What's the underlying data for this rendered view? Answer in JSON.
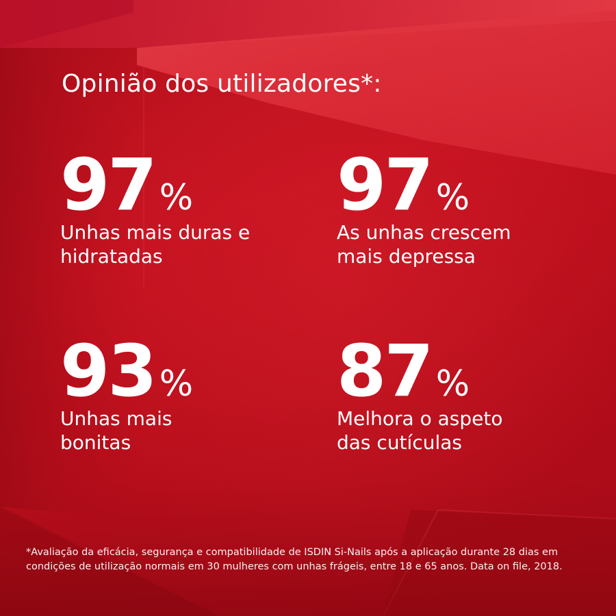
{
  "headline": "Opinião dos utilizadores*:",
  "stats": [
    {
      "number": "97",
      "unit": "%",
      "description": "Unhas mais duras e\nhidratadas"
    },
    {
      "number": "97",
      "unit": "%",
      "description": "As unhas crescem\nmais depressa"
    },
    {
      "number": "93",
      "unit": "%",
      "description": "Unhas mais\nbonitas"
    },
    {
      "number": "87",
      "unit": "%",
      "description": "Melhora o aspeto\ndas cutículas"
    }
  ],
  "footnote": "*Avaliação da eficácia, segurança e compatibilidade de ISDIN Si-Nails após a aplicação durante 28 dias em condições de utilização normais em 30 mulheres com unhas frágeis, entre 18 e 65 anos. Data on file, 2018.",
  "colors": {
    "background": "#c4111f",
    "text": "#ffffff"
  }
}
